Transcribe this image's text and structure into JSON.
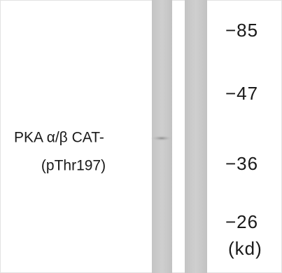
{
  "label": {
    "line1": "PKA α/β CAT-",
    "line2": "(pThr197)"
  },
  "markers": [
    "−85",
    "−47",
    "−36",
    "−26"
  ],
  "unit": "(kd)"
}
